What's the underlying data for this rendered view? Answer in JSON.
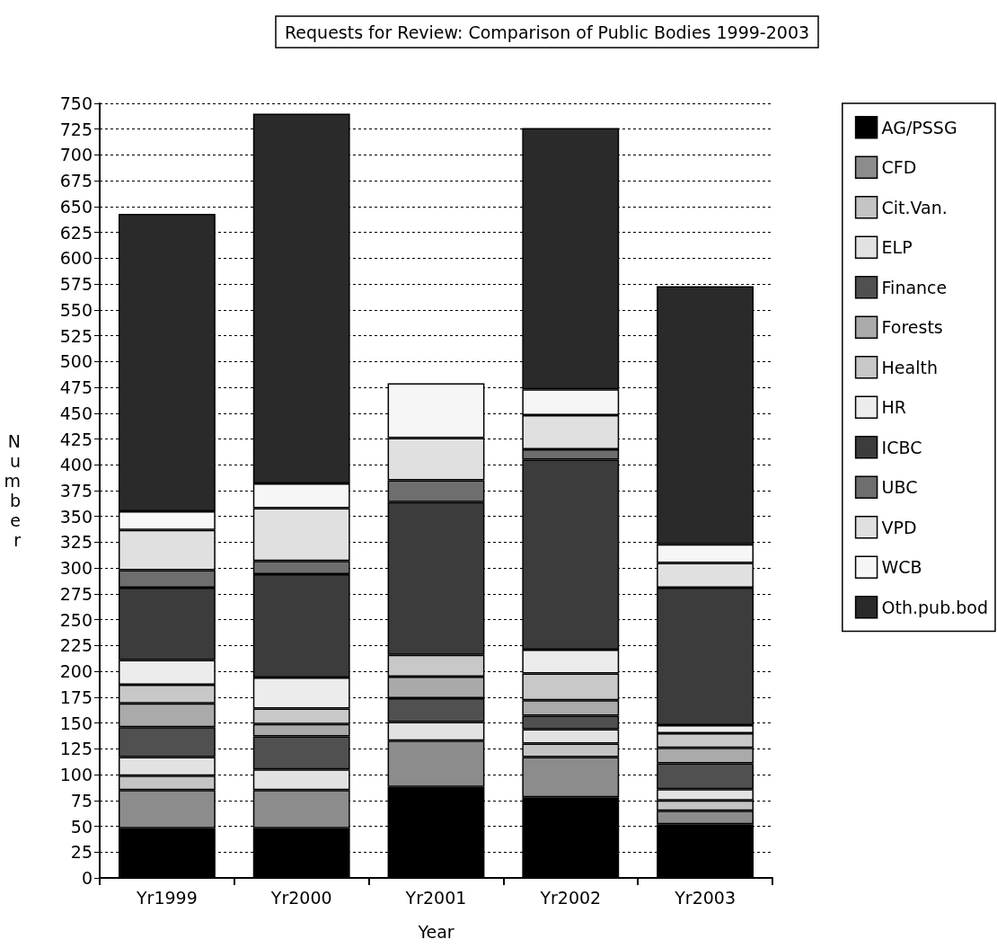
{
  "chart_data": {
    "type": "bar",
    "stacked": true,
    "title": "Requests for Review: Comparison of Public Bodies 1999-2003",
    "xlabel": "Year",
    "ylabel": "Number",
    "categories": [
      "Yr1999",
      "Yr2000",
      "Yr2001",
      "Yr2002",
      "Yr2003"
    ],
    "series": [
      {
        "name": "AG/PSSG",
        "color": "#000000",
        "values": [
          48,
          48,
          88,
          78,
          52
        ]
      },
      {
        "name": "CFD",
        "color": "#8c8c8c",
        "values": [
          37,
          37,
          45,
          39,
          13
        ]
      },
      {
        "name": "Cit.Van.",
        "color": "#c4c4c4",
        "values": [
          14,
          null,
          null,
          13,
          10
        ]
      },
      {
        "name": "ELP",
        "color": "#e2e2e2",
        "values": [
          18,
          20,
          18,
          14,
          11
        ]
      },
      {
        "name": "Finance",
        "color": "#505050",
        "values": [
          29,
          32,
          23,
          13,
          25
        ]
      },
      {
        "name": "Forests",
        "color": "#aaaaaa",
        "values": [
          23,
          12,
          21,
          15,
          15
        ]
      },
      {
        "name": "Health",
        "color": "#c8c8c8",
        "values": [
          18,
          15,
          21,
          26,
          14
        ]
      },
      {
        "name": "HR",
        "color": "#ececec",
        "values": [
          24,
          30,
          null,
          23,
          8
        ]
      },
      {
        "name": "ICBC",
        "color": "#3c3c3c",
        "values": [
          70,
          100,
          148,
          184,
          133
        ]
      },
      {
        "name": "UBC",
        "color": "#6e6e6e",
        "values": [
          17,
          13,
          21,
          10,
          null
        ]
      },
      {
        "name": "VPD",
        "color": "#e0e0e0",
        "values": [
          39,
          51,
          41,
          33,
          24
        ]
      },
      {
        "name": "WCB",
        "color": "#f6f6f6",
        "values": [
          18,
          24,
          53,
          25,
          18
        ]
      },
      {
        "name": "Oth.pub.bod",
        "color": "#2a2a2a",
        "values": [
          288,
          358,
          null,
          253,
          250
        ]
      }
    ],
    "ylim": [
      0,
      750
    ],
    "yticks": [
      0,
      25,
      50,
      75,
      100,
      125,
      150,
      175,
      200,
      225,
      250,
      275,
      300,
      325,
      350,
      375,
      400,
      425,
      450,
      475,
      500,
      525,
      550,
      575,
      600,
      625,
      650,
      675,
      700,
      725,
      750
    ],
    "grid": "y",
    "legend": "right"
  }
}
